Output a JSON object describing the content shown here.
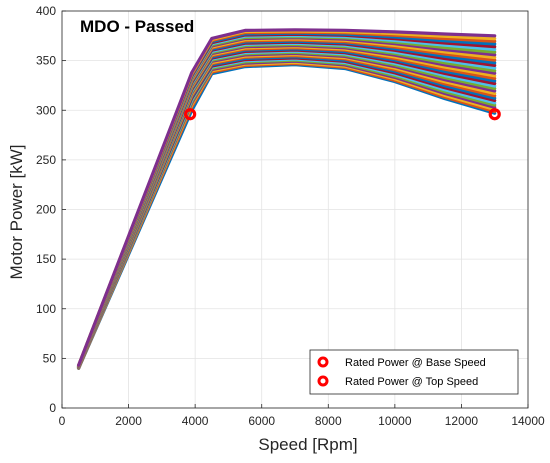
{
  "chart_data": {
    "type": "line",
    "title": "MDO - Passed",
    "xlabel": "Speed [Rpm]",
    "ylabel": "Motor Power [kW]",
    "xlim": [
      0,
      14000
    ],
    "ylim": [
      0,
      400
    ],
    "x_ticks": [
      0,
      2000,
      4000,
      6000,
      8000,
      10000,
      12000,
      14000
    ],
    "y_ticks": [
      0,
      50,
      100,
      150,
      200,
      250,
      300,
      350,
      400
    ],
    "x_tick_labels": [
      "0",
      "2000",
      "4000",
      "6000",
      "8000",
      "10000",
      "12000",
      "14000"
    ],
    "y_tick_labels": [
      "0",
      "50",
      "100",
      "150",
      "200",
      "250",
      "300",
      "350",
      "400"
    ],
    "grid": true,
    "legend_position": "bottom-right",
    "series_family": {
      "description_x": [
        500,
        3900,
        4500,
        5500,
        7000,
        8500,
        10000,
        11500,
        13000
      ],
      "count": 32,
      "power_at_500_rpm": [
        40,
        43
      ],
      "power_at_3900_rpm": [
        300,
        338
      ],
      "peak_power_range": [
        346,
        381
      ],
      "power_at_13000_rpm": [
        297,
        375
      ]
    },
    "markers": {
      "legend": [
        {
          "label": "Rated Power @ Base Speed"
        },
        {
          "label": "Rated Power @ Top Speed"
        }
      ],
      "points": [
        {
          "x": 3850,
          "y": 296
        },
        {
          "x": 13000,
          "y": 296
        }
      ],
      "color": "#ff0000"
    },
    "colors": [
      "#0072bd",
      "#d95319",
      "#edb120",
      "#7e2f8e",
      "#77ac30",
      "#4dbeee",
      "#a2142f"
    ]
  }
}
